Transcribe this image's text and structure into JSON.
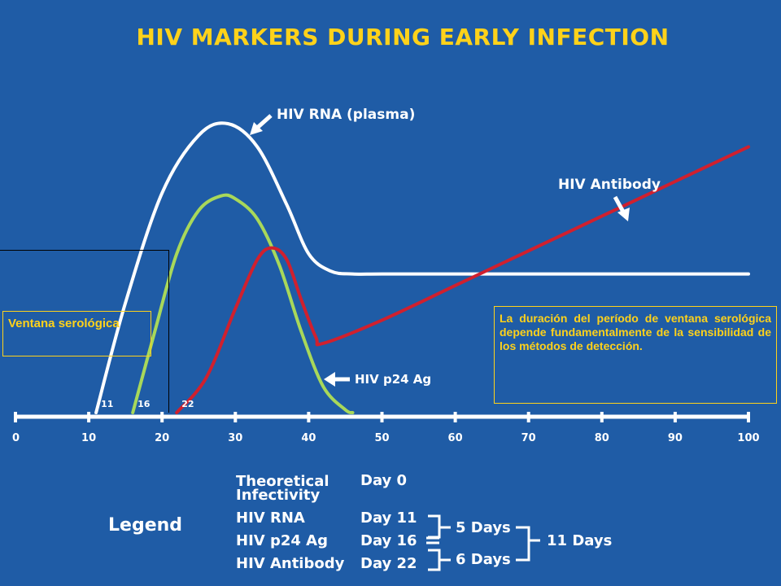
{
  "title": "HIV MARKERS DURING EARLY INFECTION",
  "annotations": {
    "window_box": "Ventana serológica",
    "duration_box": "La duración del período de ventana serológica depende fundamentalmente de la sensibilidad de los métodos de detección."
  },
  "chart_data": {
    "type": "line",
    "title": "HIV MARKERS DURING EARLY INFECTION",
    "xlabel": "",
    "ylabel": "",
    "xlim": [
      0,
      100
    ],
    "x_ticks": [
      0,
      10,
      20,
      30,
      40,
      50,
      60,
      70,
      80,
      90,
      100
    ],
    "grid": false,
    "legend": "bottom (table)",
    "series": [
      {
        "name": "HIV RNA (plasma)",
        "color": "#ffffff",
        "x": [
          11,
          15,
          20,
          25,
          29,
          33,
          37,
          40,
          43,
          46,
          50,
          60,
          70,
          80,
          90,
          100
        ],
        "y": [
          0,
          38,
          76,
          96,
          100,
          92,
          72,
          55,
          49,
          48,
          48,
          48,
          48,
          48,
          48,
          48
        ]
      },
      {
        "name": "HIV p24 Ag",
        "color": "#a8d85a",
        "x": [
          16,
          19,
          22,
          25,
          28,
          30,
          33,
          36,
          39,
          42,
          45,
          46
        ],
        "y": [
          0,
          28,
          55,
          70,
          75,
          74,
          67,
          51,
          28,
          9,
          1,
          0
        ]
      },
      {
        "name": "HIV Antibody",
        "color": "#d0202e",
        "x": [
          22,
          26,
          30,
          33,
          35,
          37,
          39,
          41,
          42,
          50,
          60,
          70,
          80,
          90,
          100
        ],
        "y": [
          0,
          12,
          36,
          53,
          57,
          53,
          39,
          26,
          24,
          32,
          44,
          56,
          68,
          80,
          92
        ]
      }
    ],
    "onset_labels": [
      {
        "x": 11,
        "label": "11"
      },
      {
        "x": 16,
        "label": "16"
      },
      {
        "x": 22,
        "label": "22"
      }
    ],
    "legend_table": {
      "heading": "Legend",
      "rows": [
        {
          "marker": "Theoretical Infectivity",
          "day": "Day 0"
        },
        {
          "marker": "HIV RNA",
          "day": "Day 11"
        },
        {
          "marker": "HIV p24 Ag",
          "day": "Day 16"
        },
        {
          "marker": "HIV Antibody",
          "day": "Day 22"
        }
      ],
      "interval_1": "5 Days",
      "interval_2": "6 Days",
      "total": "11 Days"
    }
  }
}
